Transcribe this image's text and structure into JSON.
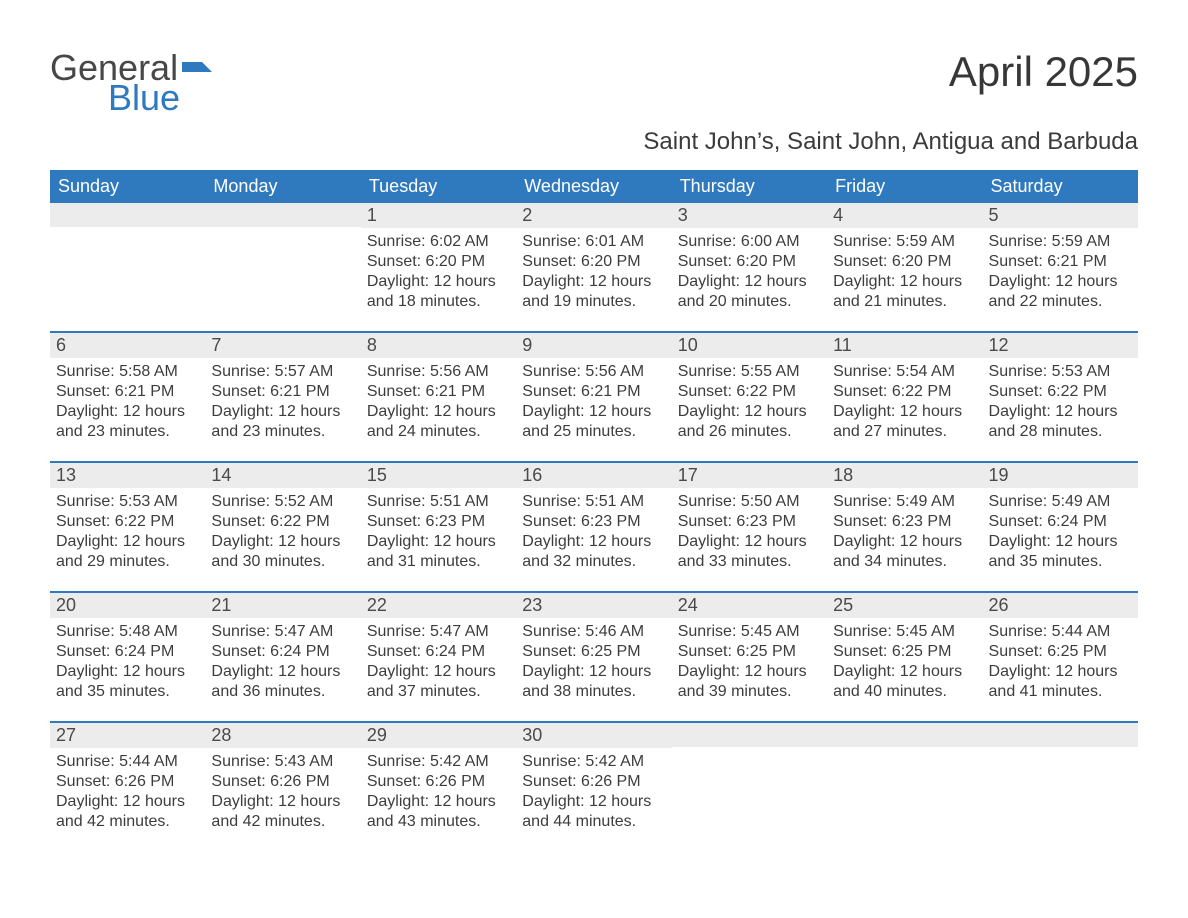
{
  "colors": {
    "header_blue": "#2f79bf",
    "row_band": "#ececec",
    "text": "#3b3b3b",
    "logo_gray": "#474747",
    "logo_blue": "#2f79bf",
    "white": "#ffffff"
  },
  "typography": {
    "title_fontsize": 42,
    "subtitle_fontsize": 24,
    "dow_fontsize": 18,
    "daynum_fontsize": 18,
    "body_fontsize": 16
  },
  "logo": {
    "word1": "General",
    "word2": "Blue"
  },
  "header": {
    "title": "April 2025",
    "subtitle": "Saint John’s, Saint John, Antigua and Barbuda"
  },
  "dow": [
    "Sunday",
    "Monday",
    "Tuesday",
    "Wednesday",
    "Thursday",
    "Friday",
    "Saturday"
  ],
  "weeks": [
    [
      {
        "empty": true
      },
      {
        "empty": true
      },
      {
        "num": "1",
        "sunrise": "Sunrise: 6:02 AM",
        "sunset": "Sunset: 6:20 PM",
        "day1": "Daylight: 12 hours",
        "day2": "and 18 minutes."
      },
      {
        "num": "2",
        "sunrise": "Sunrise: 6:01 AM",
        "sunset": "Sunset: 6:20 PM",
        "day1": "Daylight: 12 hours",
        "day2": "and 19 minutes."
      },
      {
        "num": "3",
        "sunrise": "Sunrise: 6:00 AM",
        "sunset": "Sunset: 6:20 PM",
        "day1": "Daylight: 12 hours",
        "day2": "and 20 minutes."
      },
      {
        "num": "4",
        "sunrise": "Sunrise: 5:59 AM",
        "sunset": "Sunset: 6:20 PM",
        "day1": "Daylight: 12 hours",
        "day2": "and 21 minutes."
      },
      {
        "num": "5",
        "sunrise": "Sunrise: 5:59 AM",
        "sunset": "Sunset: 6:21 PM",
        "day1": "Daylight: 12 hours",
        "day2": "and 22 minutes."
      }
    ],
    [
      {
        "num": "6",
        "sunrise": "Sunrise: 5:58 AM",
        "sunset": "Sunset: 6:21 PM",
        "day1": "Daylight: 12 hours",
        "day2": "and 23 minutes."
      },
      {
        "num": "7",
        "sunrise": "Sunrise: 5:57 AM",
        "sunset": "Sunset: 6:21 PM",
        "day1": "Daylight: 12 hours",
        "day2": "and 23 minutes."
      },
      {
        "num": "8",
        "sunrise": "Sunrise: 5:56 AM",
        "sunset": "Sunset: 6:21 PM",
        "day1": "Daylight: 12 hours",
        "day2": "and 24 minutes."
      },
      {
        "num": "9",
        "sunrise": "Sunrise: 5:56 AM",
        "sunset": "Sunset: 6:21 PM",
        "day1": "Daylight: 12 hours",
        "day2": "and 25 minutes."
      },
      {
        "num": "10",
        "sunrise": "Sunrise: 5:55 AM",
        "sunset": "Sunset: 6:22 PM",
        "day1": "Daylight: 12 hours",
        "day2": "and 26 minutes."
      },
      {
        "num": "11",
        "sunrise": "Sunrise: 5:54 AM",
        "sunset": "Sunset: 6:22 PM",
        "day1": "Daylight: 12 hours",
        "day2": "and 27 minutes."
      },
      {
        "num": "12",
        "sunrise": "Sunrise: 5:53 AM",
        "sunset": "Sunset: 6:22 PM",
        "day1": "Daylight: 12 hours",
        "day2": "and 28 minutes."
      }
    ],
    [
      {
        "num": "13",
        "sunrise": "Sunrise: 5:53 AM",
        "sunset": "Sunset: 6:22 PM",
        "day1": "Daylight: 12 hours",
        "day2": "and 29 minutes."
      },
      {
        "num": "14",
        "sunrise": "Sunrise: 5:52 AM",
        "sunset": "Sunset: 6:22 PM",
        "day1": "Daylight: 12 hours",
        "day2": "and 30 minutes."
      },
      {
        "num": "15",
        "sunrise": "Sunrise: 5:51 AM",
        "sunset": "Sunset: 6:23 PM",
        "day1": "Daylight: 12 hours",
        "day2": "and 31 minutes."
      },
      {
        "num": "16",
        "sunrise": "Sunrise: 5:51 AM",
        "sunset": "Sunset: 6:23 PM",
        "day1": "Daylight: 12 hours",
        "day2": "and 32 minutes."
      },
      {
        "num": "17",
        "sunrise": "Sunrise: 5:50 AM",
        "sunset": "Sunset: 6:23 PM",
        "day1": "Daylight: 12 hours",
        "day2": "and 33 minutes."
      },
      {
        "num": "18",
        "sunrise": "Sunrise: 5:49 AM",
        "sunset": "Sunset: 6:23 PM",
        "day1": "Daylight: 12 hours",
        "day2": "and 34 minutes."
      },
      {
        "num": "19",
        "sunrise": "Sunrise: 5:49 AM",
        "sunset": "Sunset: 6:24 PM",
        "day1": "Daylight: 12 hours",
        "day2": "and 35 minutes."
      }
    ],
    [
      {
        "num": "20",
        "sunrise": "Sunrise: 5:48 AM",
        "sunset": "Sunset: 6:24 PM",
        "day1": "Daylight: 12 hours",
        "day2": "and 35 minutes."
      },
      {
        "num": "21",
        "sunrise": "Sunrise: 5:47 AM",
        "sunset": "Sunset: 6:24 PM",
        "day1": "Daylight: 12 hours",
        "day2": "and 36 minutes."
      },
      {
        "num": "22",
        "sunrise": "Sunrise: 5:47 AM",
        "sunset": "Sunset: 6:24 PM",
        "day1": "Daylight: 12 hours",
        "day2": "and 37 minutes."
      },
      {
        "num": "23",
        "sunrise": "Sunrise: 5:46 AM",
        "sunset": "Sunset: 6:25 PM",
        "day1": "Daylight: 12 hours",
        "day2": "and 38 minutes."
      },
      {
        "num": "24",
        "sunrise": "Sunrise: 5:45 AM",
        "sunset": "Sunset: 6:25 PM",
        "day1": "Daylight: 12 hours",
        "day2": "and 39 minutes."
      },
      {
        "num": "25",
        "sunrise": "Sunrise: 5:45 AM",
        "sunset": "Sunset: 6:25 PM",
        "day1": "Daylight: 12 hours",
        "day2": "and 40 minutes."
      },
      {
        "num": "26",
        "sunrise": "Sunrise: 5:44 AM",
        "sunset": "Sunset: 6:25 PM",
        "day1": "Daylight: 12 hours",
        "day2": "and 41 minutes."
      }
    ],
    [
      {
        "num": "27",
        "sunrise": "Sunrise: 5:44 AM",
        "sunset": "Sunset: 6:26 PM",
        "day1": "Daylight: 12 hours",
        "day2": "and 42 minutes."
      },
      {
        "num": "28",
        "sunrise": "Sunrise: 5:43 AM",
        "sunset": "Sunset: 6:26 PM",
        "day1": "Daylight: 12 hours",
        "day2": "and 42 minutes."
      },
      {
        "num": "29",
        "sunrise": "Sunrise: 5:42 AM",
        "sunset": "Sunset: 6:26 PM",
        "day1": "Daylight: 12 hours",
        "day2": "and 43 minutes."
      },
      {
        "num": "30",
        "sunrise": "Sunrise: 5:42 AM",
        "sunset": "Sunset: 6:26 PM",
        "day1": "Daylight: 12 hours",
        "day2": "and 44 minutes."
      },
      {
        "empty": true
      },
      {
        "empty": true
      },
      {
        "empty": true
      }
    ]
  ]
}
